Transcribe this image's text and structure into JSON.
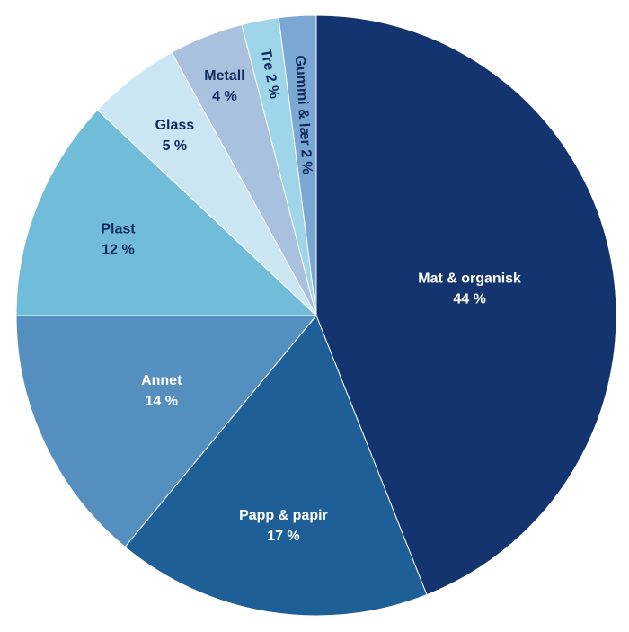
{
  "chart_data": {
    "type": "pie",
    "title": "",
    "slices": [
      {
        "label": "Mat & organisk",
        "value": 44,
        "value_text": "44 %",
        "color": "#14346f",
        "text_color": "#ffffff"
      },
      {
        "label": "Papp & papir",
        "value": 17,
        "value_text": "17 %",
        "color": "#1f5f98",
        "text_color": "#ffffff"
      },
      {
        "label": "Annet",
        "value": 14,
        "value_text": "14 %",
        "color": "#558fc0",
        "text_color": "#ffffff"
      },
      {
        "label": "Plast",
        "value": 12,
        "value_text": "12 %",
        "color": "#70bcd9",
        "text_color": "#0f2a5c"
      },
      {
        "label": "Glass",
        "value": 5,
        "value_text": "5 %",
        "color": "#cbe6f3",
        "text_color": "#0f2a5c"
      },
      {
        "label": "Metall",
        "value": 4,
        "value_text": "4 %",
        "color": "#a9c1df",
        "text_color": "#0f2a5c"
      },
      {
        "label": "Tre",
        "value": 2,
        "value_text": "2 %",
        "color": "#9ed5e8",
        "text_color": "#0f2a5c"
      },
      {
        "label": "Gummi & lær",
        "value": 2,
        "value_text": "2 %",
        "color": "#7ba7d3",
        "text_color": "#0f2a5c"
      }
    ]
  }
}
